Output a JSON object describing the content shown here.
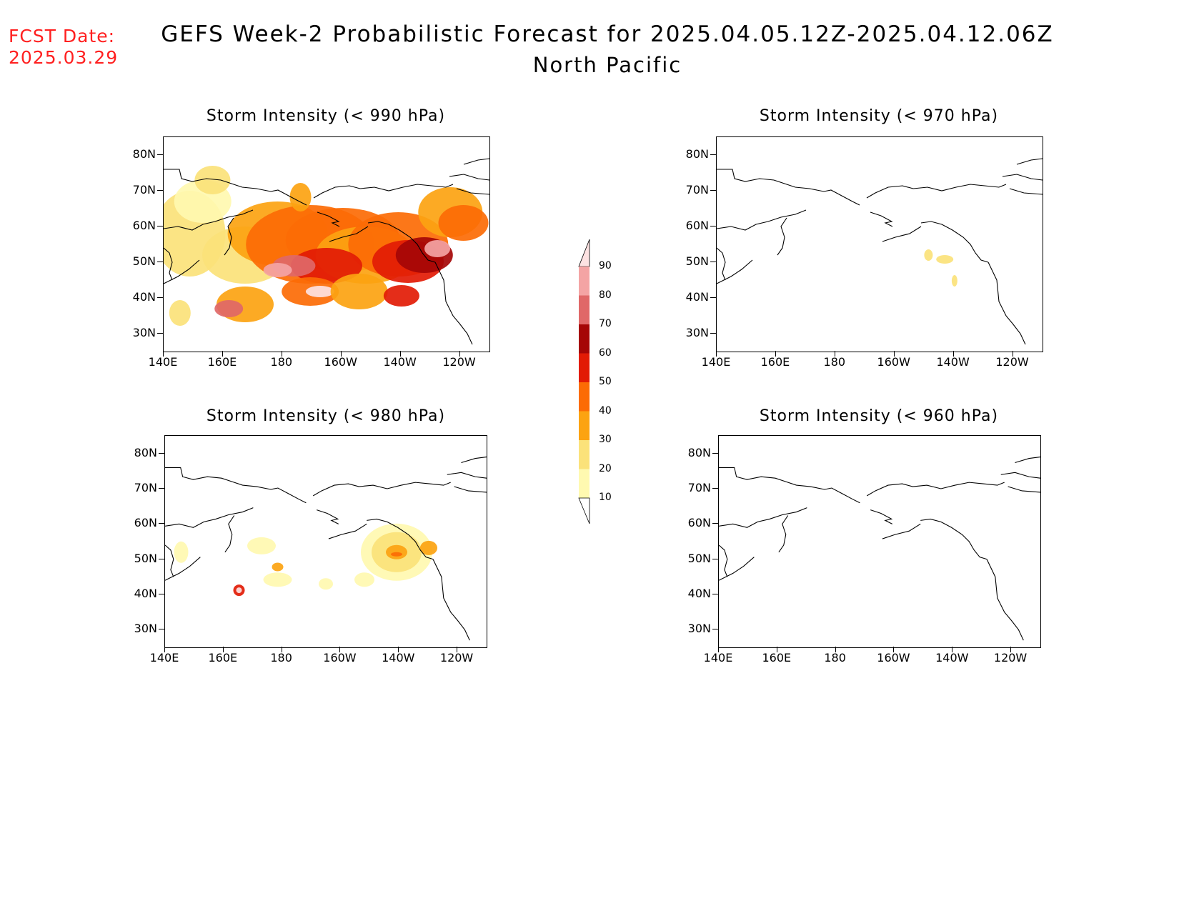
{
  "header": {
    "fcst_label": "FCST Date:",
    "fcst_date": "2025.03.29",
    "title": "GEFS Week-2 Probabilistic Forecast for 2025.04.05.12Z-2025.04.12.06Z",
    "region": "North Pacific"
  },
  "axes": {
    "lat_labels": [
      "80N",
      "70N",
      "60N",
      "50N",
      "40N",
      "30N"
    ],
    "lon_labels": [
      "140E",
      "160E",
      "180",
      "160W",
      "140W",
      "120W"
    ]
  },
  "colorbar": {
    "levels": [
      "10",
      "20",
      "30",
      "40",
      "50",
      "60",
      "70",
      "80",
      "90"
    ],
    "colors": [
      "#fff9b0",
      "#fbe27a",
      "#fca311",
      "#fc6b05",
      "#e21b05",
      "#a50606",
      "#e06868",
      "#f4a4a4",
      "#fde2e2"
    ]
  },
  "panels": [
    {
      "title": "Storm Intensity (< 990 hPa)",
      "coverage": "extensive"
    },
    {
      "title": "Storm Intensity (< 970 hPa)",
      "coverage": "minimal"
    },
    {
      "title": "Storm Intensity (< 980 hPa)",
      "coverage": "moderate"
    },
    {
      "title": "Storm Intensity (< 960 hPa)",
      "coverage": "none"
    }
  ],
  "chart_data": {
    "type": "heatmap",
    "lon_range": [
      "140E",
      "110W"
    ],
    "lat_range": [
      25,
      85
    ],
    "probability_levels": [
      10,
      20,
      30,
      40,
      50,
      60,
      70,
      80,
      90
    ]
  }
}
